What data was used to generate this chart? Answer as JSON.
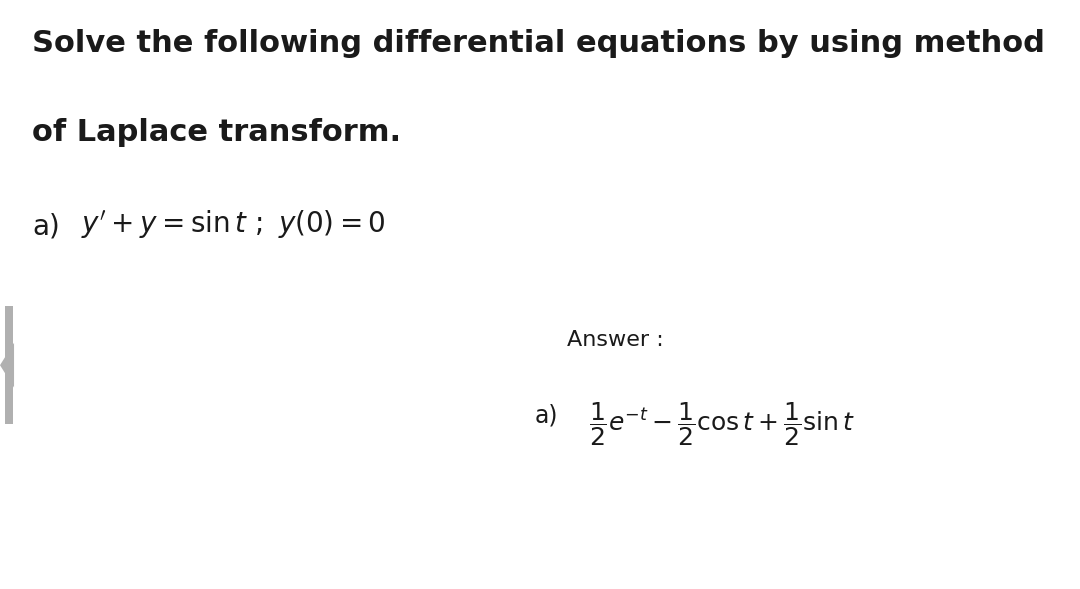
{
  "background_color": "#e8e8e8",
  "page_background": "#ffffff",
  "title_line1": "Solve the following differential equations by using method",
  "title_line2": "of Laplace transform.",
  "problem_label": "a)",
  "answer_label": "Answer :",
  "answer_part_label": "a)",
  "fig_width": 10.8,
  "fig_height": 5.89,
  "dpi": 100,
  "title_fontsize": 22,
  "problem_fontsize": 20,
  "answer_label_fontsize": 16,
  "answer_fontsize": 17,
  "text_color": "#1a1a1a",
  "left_bar_color": "#b0b0b0"
}
